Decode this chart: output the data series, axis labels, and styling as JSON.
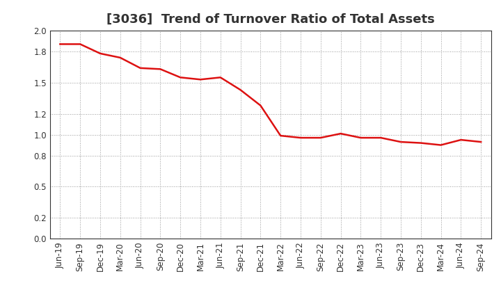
{
  "title": "[3036]  Trend of Turnover Ratio of Total Assets",
  "x_labels": [
    "Jun-19",
    "Sep-19",
    "Dec-19",
    "Mar-20",
    "Jun-20",
    "Sep-20",
    "Dec-20",
    "Mar-21",
    "Jun-21",
    "Sep-21",
    "Dec-21",
    "Mar-22",
    "Jun-22",
    "Sep-22",
    "Dec-22",
    "Mar-23",
    "Jun-23",
    "Sep-23",
    "Dec-23",
    "Mar-24",
    "Jun-24",
    "Sep-24"
  ],
  "y_values": [
    1.87,
    1.87,
    1.78,
    1.74,
    1.64,
    1.63,
    1.55,
    1.53,
    1.55,
    1.43,
    1.28,
    0.99,
    0.97,
    0.97,
    1.01,
    0.97,
    0.97,
    0.93,
    0.92,
    0.9,
    0.95,
    0.93
  ],
  "line_color": "#dd1111",
  "line_width": 1.8,
  "ylim": [
    0.0,
    2.0
  ],
  "yticks": [
    0.0,
    0.2,
    0.5,
    0.8,
    1.0,
    1.2,
    1.5,
    1.8,
    2.0
  ],
  "background_color": "#ffffff",
  "plot_bg_color": "#ffffff",
  "grid_color": "#999999",
  "title_fontsize": 13,
  "tick_fontsize": 8.5,
  "title_color": "#333333"
}
